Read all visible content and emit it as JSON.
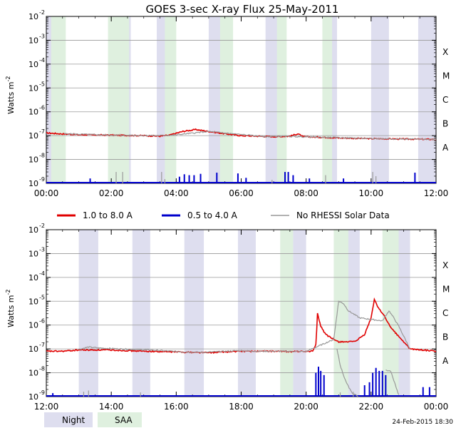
{
  "title": "GOES 3-sec X-ray Flux   25-May-2011",
  "ylabel": "Watts m",
  "ylabel_sup": "-2",
  "footer_timestamp": "24-Feb-2015 18:30",
  "colors": {
    "long": "#e00000",
    "short": "#0000cc",
    "norhessi": "#999999",
    "night": "#dedeef",
    "saa": "#dff0df",
    "grid": "#9a9a9a"
  },
  "legend": {
    "long": "1.0 to 8.0 A",
    "short": "0.5 to 4.0 A",
    "norhessi": "No RHESSI Solar Data"
  },
  "bottom_legend": {
    "night": "Night",
    "saa": "SAA"
  },
  "chart_data": [
    {
      "type": "line",
      "y_scale": "log",
      "ylim": [
        1e-09,
        0.01
      ],
      "xlim_hours": [
        0,
        12
      ],
      "x_ticks": [
        "00:00",
        "02:00",
        "04:00",
        "06:00",
        "08:00",
        "10:00",
        "12:00"
      ],
      "y_ticks": [
        "10",
        "10",
        "10",
        "10",
        "10",
        "10",
        "10",
        "10"
      ],
      "y_tick_exponents": [
        "-9",
        "-8",
        "-7",
        "-6",
        "-5",
        "-4",
        "-3",
        "-2"
      ],
      "class_labels": [
        "A",
        "B",
        "C",
        "M",
        "X"
      ],
      "night": [
        [
          0.0,
          0.55
        ],
        [
          2.0,
          2.6
        ],
        [
          3.4,
          3.9
        ],
        [
          5.0,
          5.45
        ],
        [
          6.75,
          7.15
        ],
        [
          8.55,
          8.95
        ],
        [
          10.0,
          10.55
        ],
        [
          11.45,
          12.0
        ]
      ],
      "saa": [
        [
          0.15,
          0.6
        ],
        [
          1.9,
          2.55
        ],
        [
          3.65,
          4.0
        ],
        [
          5.35,
          5.75
        ],
        [
          7.1,
          7.4
        ],
        [
          8.5,
          8.8
        ]
      ],
      "series": [
        {
          "name": "1.0 to 8.0 A",
          "key": "long",
          "points": [
            [
              0,
              1.3e-07
            ],
            [
              0.4,
              1.2e-07
            ],
            [
              1.0,
              1.1e-07
            ],
            [
              2.0,
              1.05e-07
            ],
            [
              3.0,
              1e-07
            ],
            [
              3.5,
              9.5e-08
            ],
            [
              3.8,
              1.05e-07
            ],
            [
              4.2,
              1.5e-07
            ],
            [
              4.6,
              1.8e-07
            ],
            [
              5.0,
              1.5e-07
            ],
            [
              5.5,
              1.2e-07
            ],
            [
              6.0,
              1e-07
            ],
            [
              7.0,
              9e-08
            ],
            [
              7.5,
              9.5e-08
            ],
            [
              7.75,
              1.2e-07
            ],
            [
              7.9,
              9e-08
            ],
            [
              8.5,
              8.5e-08
            ],
            [
              9.0,
              8e-08
            ],
            [
              10.0,
              7.5e-08
            ],
            [
              11.0,
              7.2e-08
            ],
            [
              12.0,
              7e-08
            ]
          ]
        },
        {
          "name": "0.5 to 4.0 A",
          "key": "short",
          "baseline": 1e-09,
          "spikes": [
            [
              1.35,
              1.6e-09
            ],
            [
              4.1,
              1.9e-09
            ],
            [
              4.25,
              2.4e-09
            ],
            [
              4.4,
              2.2e-09
            ],
            [
              4.55,
              2.2e-09
            ],
            [
              4.75,
              2.5e-09
            ],
            [
              5.25,
              2.8e-09
            ],
            [
              5.9,
              2.6e-09
            ],
            [
              6.15,
              1.7e-09
            ],
            [
              7.35,
              3e-09
            ],
            [
              7.45,
              3e-09
            ],
            [
              7.6,
              2.2e-09
            ],
            [
              8.1,
              1.6e-09
            ],
            [
              9.15,
              1.6e-09
            ],
            [
              11.35,
              2.8e-09
            ]
          ]
        },
        {
          "name": "No RHESSI Solar Data",
          "key": "norhessi",
          "points": [
            [
              0.55,
              1.2e-07
            ],
            [
              2.0,
              1.05e-07
            ],
            [
              3.4,
              1e-07
            ],
            [
              3.9,
              1.05e-07
            ],
            [
              5.0,
              1.5e-07
            ],
            [
              5.45,
              1.3e-07
            ],
            [
              6.75,
              9e-08
            ],
            [
              7.15,
              9.5e-08
            ],
            [
              8.55,
              8.5e-08
            ],
            [
              8.95,
              8.3e-08
            ],
            [
              10.0,
              7.5e-08
            ],
            [
              10.55,
              7.4e-08
            ],
            [
              11.45,
              7.1e-08
            ],
            [
              12.0,
              7e-08
            ]
          ],
          "spikes": [
            [
              2.15,
              3e-09
            ],
            [
              2.35,
              3e-09
            ],
            [
              3.55,
              3e-09
            ],
            [
              3.65,
              1.5e-09
            ],
            [
              6.95,
              1.4e-09
            ],
            [
              8.6,
              2.2e-09
            ],
            [
              10.05,
              3e-09
            ],
            [
              10.15,
              2e-09
            ]
          ]
        }
      ]
    },
    {
      "type": "line",
      "y_scale": "log",
      "ylim": [
        1e-09,
        0.01
      ],
      "xlim_hours": [
        12,
        24
      ],
      "x_ticks": [
        "12:00",
        "14:00",
        "16:00",
        "18:00",
        "20:00",
        "22:00",
        "00:00"
      ],
      "y_ticks": [
        "10",
        "10",
        "10",
        "10",
        "10",
        "10",
        "10",
        "10"
      ],
      "y_tick_exponents": [
        "-9",
        "-8",
        "-7",
        "-6",
        "-5",
        "-4",
        "-3",
        "-2"
      ],
      "class_labels": [
        "A",
        "B",
        "C",
        "M",
        "X"
      ],
      "night": [
        [
          13.0,
          13.6
        ],
        [
          14.65,
          15.2
        ],
        [
          16.25,
          16.85
        ],
        [
          17.9,
          18.45
        ],
        [
          19.6,
          20.0
        ],
        [
          21.1,
          21.65
        ],
        [
          22.8,
          23.2
        ]
      ],
      "saa": [
        [
          19.2,
          19.6
        ],
        [
          20.85,
          21.3
        ],
        [
          22.35,
          22.85
        ]
      ],
      "series": [
        {
          "name": "1.0 to 8.0 A",
          "key": "long",
          "points": [
            [
              12.0,
              8e-08
            ],
            [
              12.5,
              8e-08
            ],
            [
              13.0,
              9e-08
            ],
            [
              14.0,
              9e-08
            ],
            [
              15.0,
              8e-08
            ],
            [
              16.0,
              7.5e-08
            ],
            [
              17.0,
              7e-08
            ],
            [
              18.0,
              8e-08
            ],
            [
              19.0,
              8e-08
            ],
            [
              19.5,
              7.8e-08
            ],
            [
              20.2,
              8e-08
            ],
            [
              20.3,
              1.5e-07
            ],
            [
              20.35,
              3e-06
            ],
            [
              20.45,
              9e-07
            ],
            [
              20.6,
              4e-07
            ],
            [
              20.85,
              2.5e-07
            ],
            [
              21.0,
              2e-07
            ],
            [
              21.5,
              2e-07
            ],
            [
              21.8,
              4e-07
            ],
            [
              22.0,
              2e-06
            ],
            [
              22.1,
              1.2e-05
            ],
            [
              22.2,
              6e-06
            ],
            [
              22.4,
              2.5e-06
            ],
            [
              22.6,
              8e-07
            ],
            [
              22.8,
              4e-07
            ],
            [
              23.0,
              2e-07
            ],
            [
              23.2,
              1e-07
            ],
            [
              24.0,
              8e-08
            ]
          ]
        },
        {
          "name": "0.5 to 4.0 A",
          "key": "short",
          "baseline": 1e-09,
          "spikes": [
            [
              12.2,
              1.4e-09
            ],
            [
              20.3,
              1e-08
            ],
            [
              20.38,
              1.8e-08
            ],
            [
              20.45,
              1.2e-08
            ],
            [
              20.55,
              8e-09
            ],
            [
              21.8,
              3e-09
            ],
            [
              21.95,
              4e-09
            ],
            [
              22.05,
              1e-08
            ],
            [
              22.15,
              1.6e-08
            ],
            [
              22.25,
              1.2e-08
            ],
            [
              22.35,
              1.2e-08
            ],
            [
              22.45,
              8e-09
            ],
            [
              23.6,
              2.5e-09
            ],
            [
              23.8,
              2.5e-09
            ]
          ]
        },
        {
          "name": "No RHESSI Solar Data",
          "key": "norhessi",
          "points": [
            [
              13.0,
              9.5e-08
            ],
            [
              13.3,
              1.2e-07
            ],
            [
              13.6,
              1.1e-07
            ],
            [
              14.65,
              9.5e-08
            ],
            [
              15.2,
              9e-08
            ],
            [
              16.25,
              7.5e-08
            ],
            [
              16.85,
              7.2e-08
            ],
            [
              17.9,
              8.5e-08
            ],
            [
              18.45,
              8e-08
            ],
            [
              19.2,
              8e-08
            ],
            [
              20.0,
              7.8e-08
            ],
            [
              20.85,
              2.5e-07
            ],
            [
              21.0,
              1e-05
            ],
            [
              21.15,
              8e-06
            ],
            [
              21.3,
              4e-06
            ],
            [
              21.65,
              2e-06
            ],
            [
              22.35,
              1.5e-06
            ],
            [
              22.55,
              4e-06
            ],
            [
              22.7,
              2e-06
            ],
            [
              22.85,
              9e-07
            ],
            [
              23.2,
              1e-07
            ]
          ],
          "lower_points": [
            [
              20.95,
              1e-07
            ],
            [
              21.05,
              2e-08
            ],
            [
              21.2,
              5e-09
            ],
            [
              21.4,
              1.5e-09
            ],
            [
              21.6,
              1e-09
            ]
          ],
          "lower_points_2": [
            [
              22.45,
              1.3e-08
            ],
            [
              22.6,
              1.2e-08
            ],
            [
              22.75,
              3e-09
            ],
            [
              22.85,
              1.2e-09
            ]
          ],
          "spikes": [
            [
              13.15,
              1.6e-09
            ],
            [
              13.3,
              1.8e-09
            ],
            [
              14.9,
              1.5e-09
            ],
            [
              21.05,
              1.5e-09
            ],
            [
              21.45,
              1.6e-09
            ]
          ]
        }
      ]
    }
  ]
}
